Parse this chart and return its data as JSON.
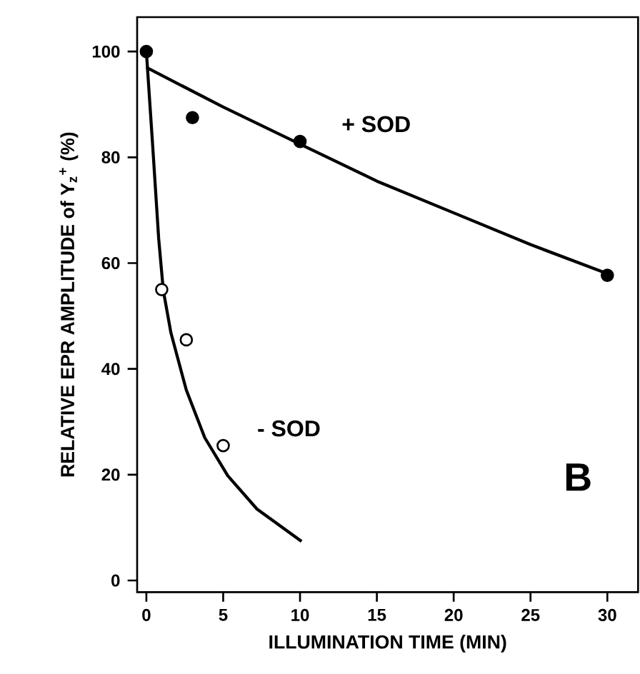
{
  "chart_data": {
    "type": "scatter",
    "xlabel": "ILLUMINATION TIME (MIN)",
    "ylabel": "RELATIVE EPR AMPLITUDE of Y$_{z}$$^{+}$ (%)",
    "xlim": [
      -0.6,
      32
    ],
    "ylim": [
      -2.2,
      106.5
    ],
    "xticks": [
      0,
      5,
      10,
      15,
      20,
      25,
      30
    ],
    "yticks": [
      0,
      20,
      40,
      60,
      80,
      100
    ],
    "grid": false,
    "legend": false,
    "marker": "circle",
    "series": [
      {
        "name": "+ SOD",
        "color": "#000000",
        "x": [
          0,
          3,
          10,
          30
        ],
        "values": [
          100,
          87.5,
          83,
          57.7
        ]
      },
      {
        "name": "- SOD",
        "color": "#000000",
        "x": [
          1,
          2.6,
          5
        ],
        "values": [
          55,
          45.5,
          25.5
        ]
      },
      {
        "type": "line",
        "color": "#000000",
        "marker": "none",
        "x": [
          0,
          5,
          10,
          15,
          20,
          25,
          30
        ],
        "values": [
          97,
          89.5,
          82.5,
          75.5,
          69.5,
          63.5,
          58
        ]
      },
      {
        "type": "line",
        "color": "#000000",
        "marker": "none",
        "x": [
          0,
          0.4,
          0.8,
          1.1,
          1.6,
          2.6,
          3.8,
          5.3,
          7.2,
          10.1
        ],
        "values": [
          100,
          82.7,
          64.7,
          54.9,
          46.8,
          36,
          27,
          19.8,
          13.5,
          7.4
        ]
      }
    ],
    "annotations": [
      "B"
    ]
  }
}
